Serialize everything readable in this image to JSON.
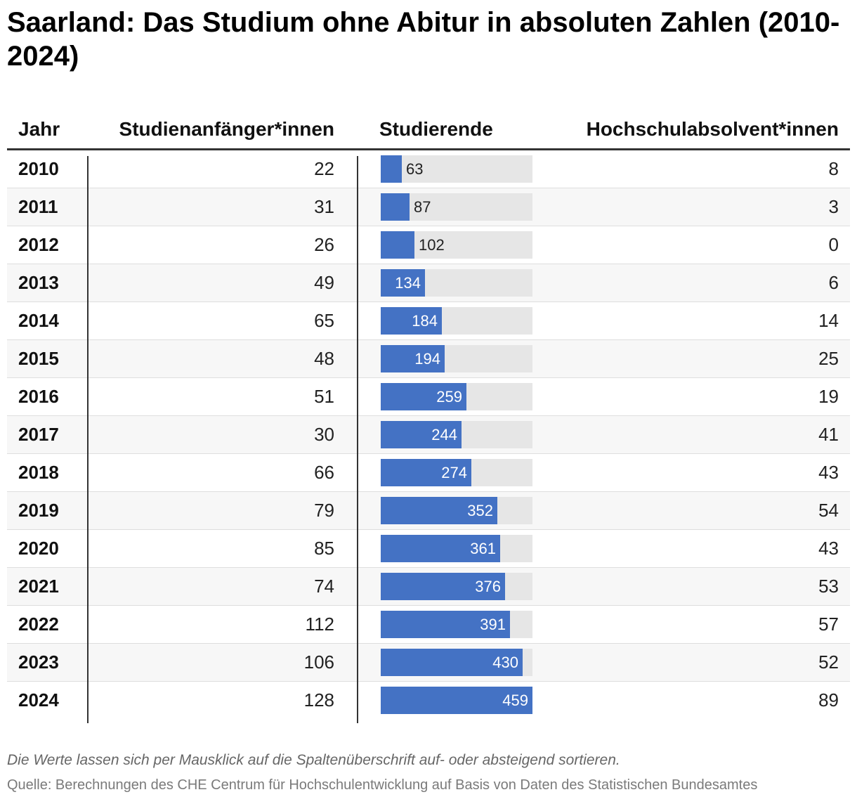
{
  "title": "Saarland: Das Studium ohne Abitur in absoluten Zahlen (2010-2024)",
  "columns": {
    "year": "Jahr",
    "starters": "Studienanfänger*innen",
    "students": "Studierende",
    "graduates": "Hochschulabsolvent*innen"
  },
  "chart_data": {
    "type": "table",
    "title": "Saarland: Das Studium ohne Abitur in absoluten Zahlen (2010-2024)",
    "bar_column": "Studierende",
    "bar_max": 459,
    "accent_color": "#4472c4",
    "rows": [
      {
        "year": "2010",
        "starters": 22,
        "students": 63,
        "graduates": 8
      },
      {
        "year": "2011",
        "starters": 31,
        "students": 87,
        "graduates": 3
      },
      {
        "year": "2012",
        "starters": 26,
        "students": 102,
        "graduates": 0
      },
      {
        "year": "2013",
        "starters": 49,
        "students": 134,
        "graduates": 6
      },
      {
        "year": "2014",
        "starters": 65,
        "students": 184,
        "graduates": 14
      },
      {
        "year": "2015",
        "starters": 48,
        "students": 194,
        "graduates": 25
      },
      {
        "year": "2016",
        "starters": 51,
        "students": 259,
        "graduates": 19
      },
      {
        "year": "2017",
        "starters": 30,
        "students": 244,
        "graduates": 41
      },
      {
        "year": "2018",
        "starters": 66,
        "students": 274,
        "graduates": 43
      },
      {
        "year": "2019",
        "starters": 79,
        "students": 352,
        "graduates": 54
      },
      {
        "year": "2020",
        "starters": 85,
        "students": 361,
        "graduates": 43
      },
      {
        "year": "2021",
        "starters": 74,
        "students": 376,
        "graduates": 53
      },
      {
        "year": "2022",
        "starters": 112,
        "students": 391,
        "graduates": 57
      },
      {
        "year": "2023",
        "starters": 106,
        "students": 430,
        "graduates": 52
      },
      {
        "year": "2024",
        "starters": 128,
        "students": 459,
        "graduates": 89
      }
    ]
  },
  "note": "Die Werte lassen sich per Mausklick auf die Spaltenüberschrift auf- oder absteigend sortieren.",
  "source": "Quelle: Berechnungen des CHE Centrum für Hochschulentwicklung auf Basis von Daten des Statistischen Bundesamtes"
}
